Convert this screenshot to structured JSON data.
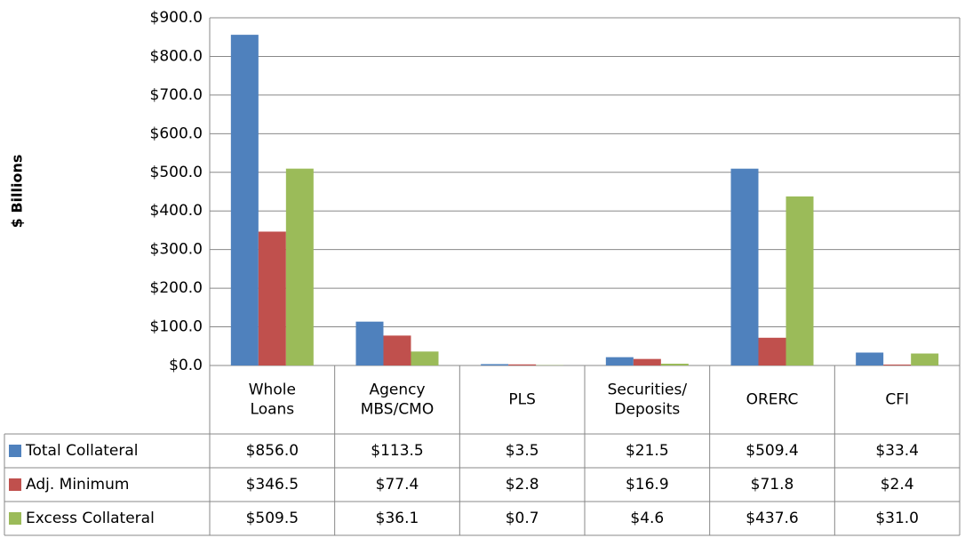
{
  "chart_data": {
    "type": "bar",
    "y_axis_label": "$ Billions",
    "categories": [
      "Whole Loans",
      "Agency MBS/CMO",
      "PLS",
      "Securities/ Deposits",
      "ORERC",
      "CFI"
    ],
    "series": [
      {
        "name": "Total Collateral",
        "color": "#4f81bd",
        "values": [
          856.0,
          113.5,
          3.5,
          21.5,
          509.4,
          33.4
        ],
        "value_labels": [
          "$856.0",
          "$113.5",
          "$3.5",
          "$21.5",
          "$509.4",
          "$33.4"
        ]
      },
      {
        "name": "Adj. Minimum",
        "color": "#c0504d",
        "values": [
          346.5,
          77.4,
          2.8,
          16.9,
          71.8,
          2.4
        ],
        "value_labels": [
          "$346.5",
          "$77.4",
          "$2.8",
          "$16.9",
          "$71.8",
          "$2.4"
        ]
      },
      {
        "name": "Excess Collateral",
        "color": "#9bbb59",
        "values": [
          509.5,
          36.1,
          0.7,
          4.6,
          437.6,
          31.0
        ],
        "value_labels": [
          "$509.5",
          "$36.1",
          "$0.7",
          "$4.6",
          "$437.6",
          "$31.0"
        ]
      }
    ],
    "ylim": [
      0,
      900
    ],
    "yticks": [
      {
        "value": 0,
        "label": "$0.0"
      },
      {
        "value": 100,
        "label": "$100.0"
      },
      {
        "value": 200,
        "label": "$200.0"
      },
      {
        "value": 300,
        "label": "$300.0"
      },
      {
        "value": 400,
        "label": "$400.0"
      },
      {
        "value": 500,
        "label": "$500.0"
      },
      {
        "value": 600,
        "label": "$600.0"
      },
      {
        "value": 700,
        "label": "$700.0"
      },
      {
        "value": 800,
        "label": "$800.0"
      },
      {
        "value": 900,
        "label": "$900.0"
      }
    ],
    "grid": true
  }
}
